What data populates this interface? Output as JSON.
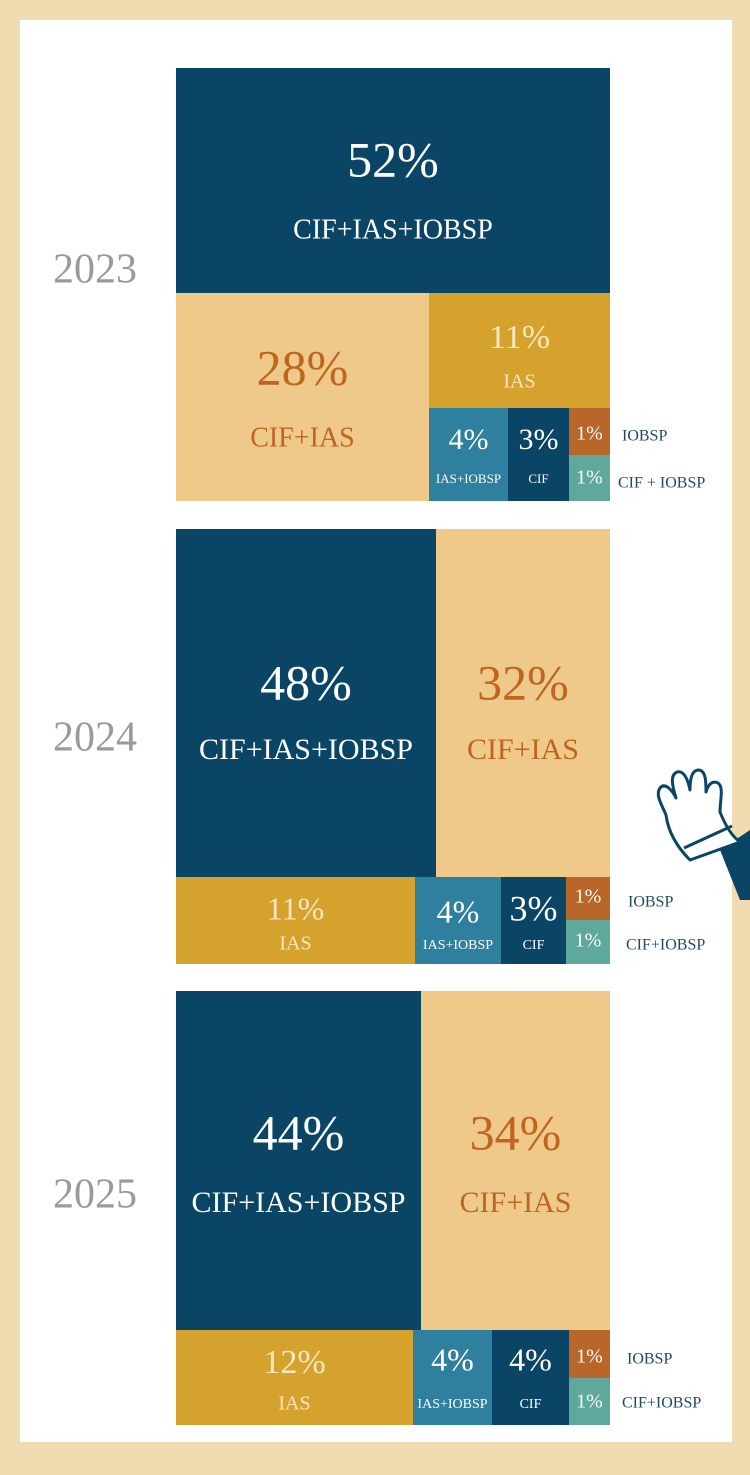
{
  "chart_data": [
    {
      "type": "treemap",
      "title": "2023",
      "categories": [
        "CIF+IAS+IOBSP",
        "CIF+IAS",
        "IAS",
        "IAS+IOBSP",
        "CIF",
        "IOBSP",
        "CIF + IOBSP"
      ],
      "values": [
        52,
        28,
        11,
        4,
        3,
        1,
        1
      ],
      "value_labels": [
        "52%",
        "28%",
        "11%",
        "4%",
        "3%",
        "1%",
        "1%"
      ],
      "colors": [
        "#0b4566",
        "#eec98a",
        "#d6a22e",
        "#2f7f9e",
        "#0b4566",
        "#b8662a",
        "#5fa89c"
      ]
    },
    {
      "type": "treemap",
      "title": "2024",
      "categories": [
        "CIF+IAS+IOBSP",
        "CIF+IAS",
        "IAS",
        "IAS+IOBSP",
        "CIF",
        "IOBSP",
        "CIF+IOBSP"
      ],
      "values": [
        48,
        32,
        11,
        4,
        3,
        1,
        1
      ],
      "value_labels": [
        "48%",
        "32%",
        "11%",
        "4%",
        "3%",
        "1%",
        "1%"
      ],
      "colors": [
        "#0b4566",
        "#eec98a",
        "#d6a22e",
        "#2f7f9e",
        "#0b4566",
        "#b8662a",
        "#5fa89c"
      ]
    },
    {
      "type": "treemap",
      "title": "2025",
      "categories": [
        "CIF+IAS+IOBSP",
        "CIF+IAS",
        "IAS",
        "IAS+IOBSP",
        "CIF",
        "IOBSP",
        "CIF+IOBSP"
      ],
      "values": [
        44,
        34,
        12,
        4,
        4,
        1,
        1
      ],
      "value_labels": [
        "44%",
        "34%",
        "12%",
        "4%",
        "4%",
        "1%",
        "1%"
      ],
      "colors": [
        "#0b4566",
        "#eec98a",
        "#d6a22e",
        "#2f7f9e",
        "#0b4566",
        "#b8662a",
        "#5fa89c"
      ]
    }
  ]
}
